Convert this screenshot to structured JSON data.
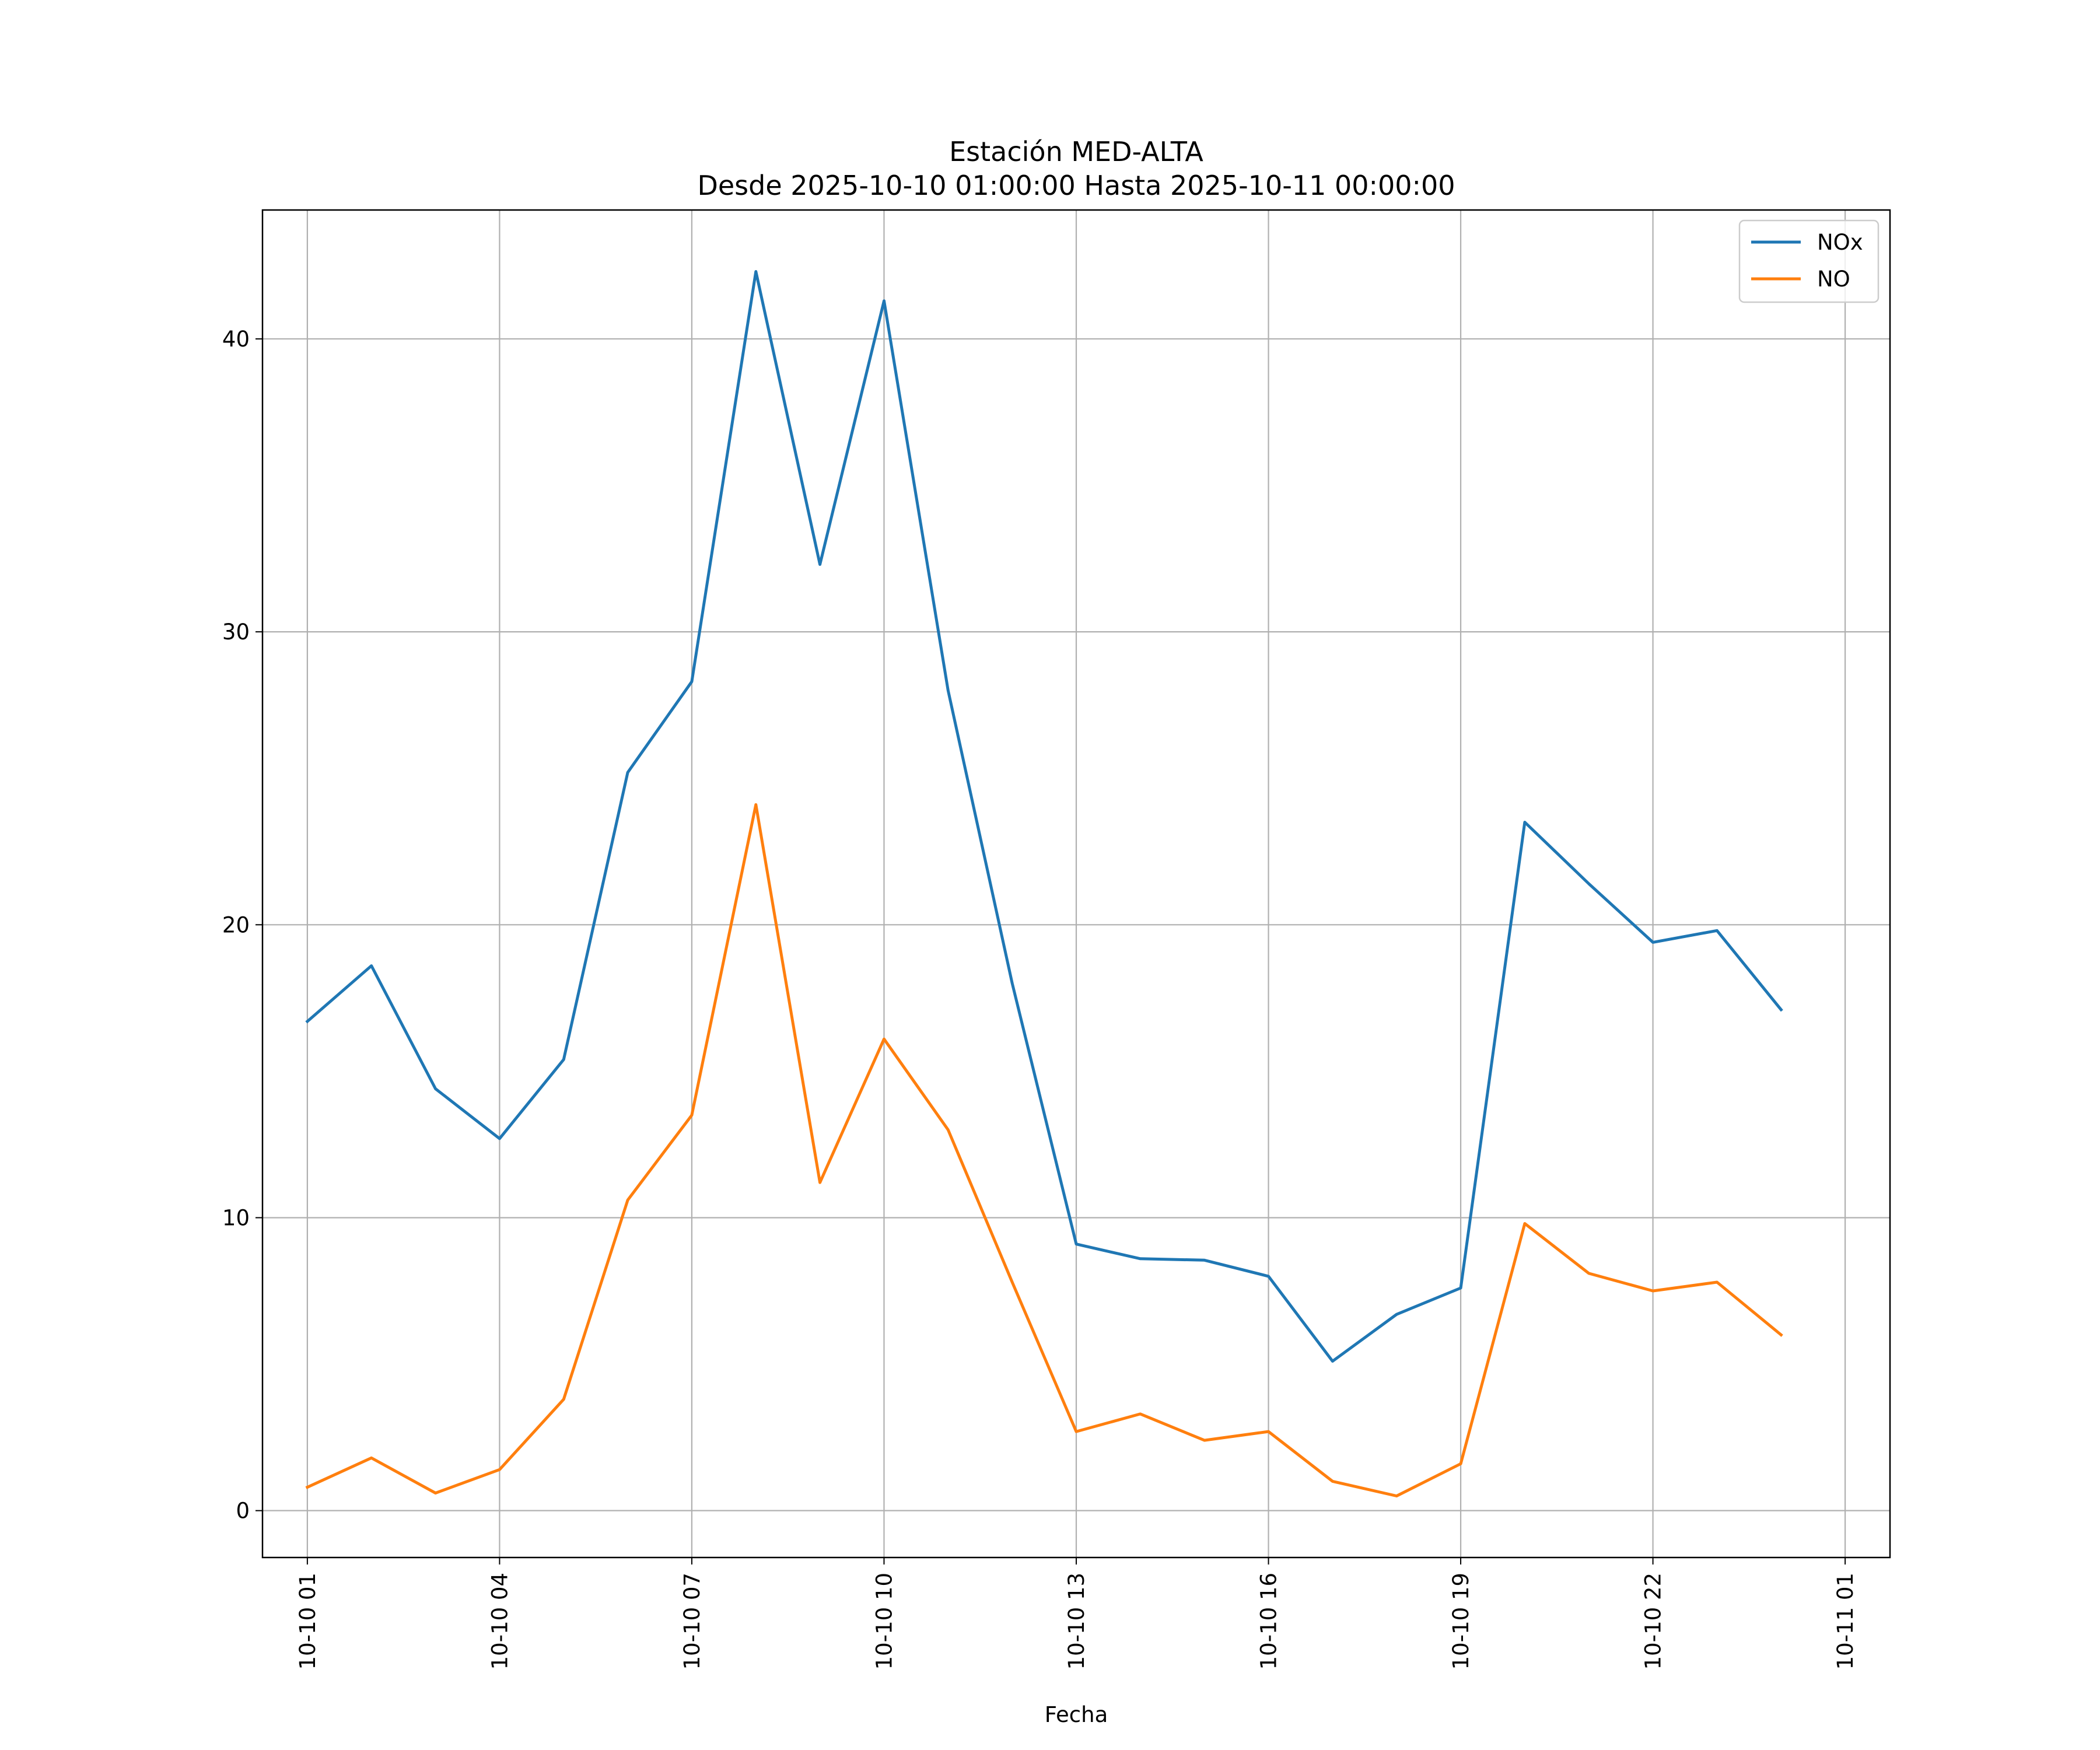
{
  "chart_data": {
    "type": "line",
    "title": "Estación MED-ALTA",
    "subtitle": "Desde 2025-10-10 01:00:00 Hasta 2025-10-11 00:00:00",
    "xlabel": "Fecha",
    "ylabel": "",
    "x": [
      "2025-10-10 01:00",
      "2025-10-10 02:00",
      "2025-10-10 03:00",
      "2025-10-10 04:00",
      "2025-10-10 05:00",
      "2025-10-10 06:00",
      "2025-10-10 07:00",
      "2025-10-10 08:00",
      "2025-10-10 09:00",
      "2025-10-10 10:00",
      "2025-10-10 11:00",
      "2025-10-10 12:00",
      "2025-10-10 13:00",
      "2025-10-10 14:00",
      "2025-10-10 15:00",
      "2025-10-10 16:00",
      "2025-10-10 17:00",
      "2025-10-10 18:00",
      "2025-10-10 19:00",
      "2025-10-10 20:00",
      "2025-10-10 21:00",
      "2025-10-10 22:00",
      "2025-10-10 23:00",
      "2025-10-11 00:00"
    ],
    "series": [
      {
        "name": "NOx",
        "color": "#1f77b4",
        "values": [
          16.7,
          18.6,
          14.4,
          12.7,
          15.4,
          25.2,
          28.3,
          42.3,
          32.3,
          41.3,
          28.0,
          18.0,
          9.1,
          8.6,
          8.55,
          8.0,
          5.1,
          6.7,
          7.6,
          23.5,
          21.4,
          19.4,
          19.8,
          17.1
        ]
      },
      {
        "name": "NO",
        "color": "#ff7f0e",
        "values": [
          0.8,
          1.8,
          0.6,
          1.4,
          3.8,
          10.6,
          13.5,
          24.1,
          11.2,
          16.1,
          13.0,
          7.8,
          2.7,
          3.3,
          2.4,
          2.7,
          1.0,
          0.5,
          1.6,
          9.8,
          8.1,
          7.5,
          7.8,
          6.0
        ]
      }
    ],
    "xticks": [
      "10-10 01",
      "10-10 04",
      "10-10 07",
      "10-10 10",
      "10-10 13",
      "10-10 16",
      "10-10 19",
      "10-10 22",
      "10-11 01"
    ],
    "xlim": [
      "2025-10-10 00:18",
      "2025-10-11 01:42"
    ],
    "yticks": [
      0,
      10,
      20,
      30,
      40
    ],
    "ylim": [
      -1.6,
      44.4
    ],
    "grid": true,
    "legend": "top-right"
  }
}
